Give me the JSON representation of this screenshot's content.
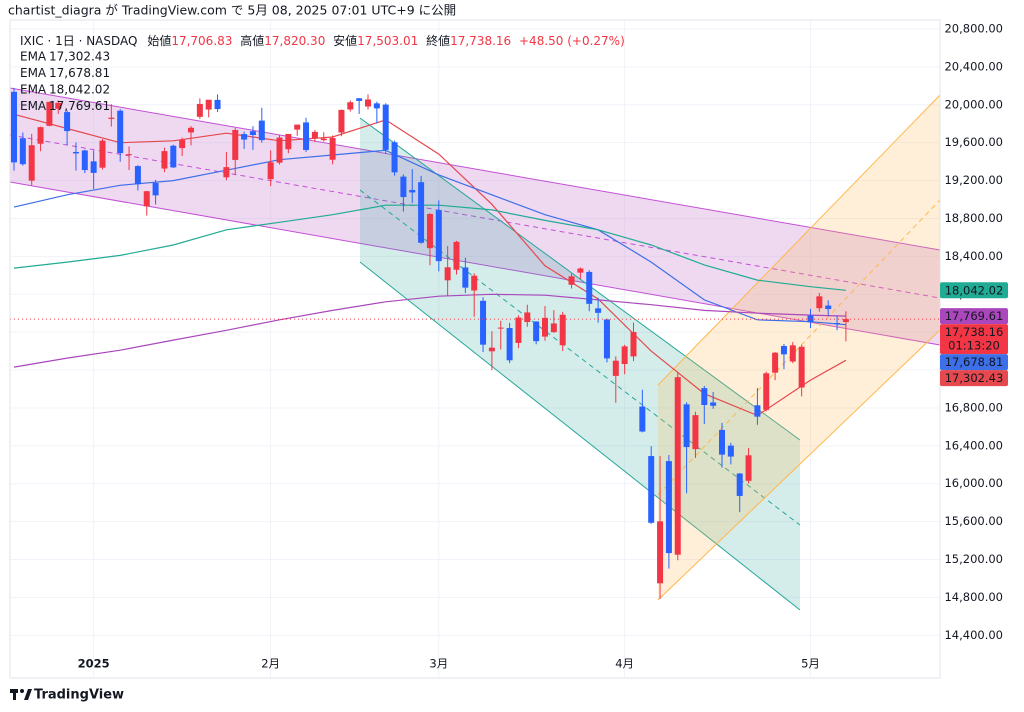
{
  "chart_data": {
    "type": "candlestick",
    "published": "chartist_diagra が TradingView.com で 5月 08, 2025 07:01 UTC+9 に公開",
    "symbol": "IXIC · 1日 · NASDAQ",
    "ohlc_legend": [
      {
        "name": "始値",
        "label": "17,706.83"
      },
      {
        "name": "高値",
        "label": "17,820.30"
      },
      {
        "name": "安値",
        "label": "17,503.01"
      },
      {
        "name": "終値",
        "label": "17,738.16"
      }
    ],
    "change": "+48.50 (+0.27%)",
    "countdown": "01:13:20",
    "brand": "TradingView",
    "categories": [
      null,
      null,
      null,
      null,
      null,
      null,
      null,
      null,
      null,
      "2025",
      null,
      null,
      null,
      null,
      null,
      null,
      null,
      null,
      null,
      null,
      null,
      null,
      null,
      null,
      null,
      null,
      null,
      null,
      null,
      "2月",
      null,
      null,
      null,
      null,
      null,
      null,
      null,
      null,
      null,
      null,
      null,
      null,
      null,
      null,
      null,
      null,
      null,
      null,
      "3月",
      null,
      null,
      null,
      null,
      null,
      null,
      null,
      null,
      null,
      null,
      null,
      null,
      null,
      null,
      null,
      null,
      null,
      null,
      null,
      null,
      "4月",
      null,
      null,
      null,
      null,
      null,
      null,
      null,
      null,
      null,
      null,
      null,
      null,
      null,
      null,
      null,
      null,
      null,
      null,
      null,
      null,
      "5月",
      null,
      null,
      null,
      null
    ],
    "open": [
      20137,
      19647,
      19199,
      19589,
      19778,
      19958,
      19923,
      19502,
      19518,
      19403,
      19336,
      19851,
      19938,
      19469,
      19353,
      18928,
      19174,
      19327,
      19568,
      19543,
      19708,
      19873,
      19950,
      20052,
      19235,
      19418,
      19691,
      19721,
      19833,
      19215,
      19389,
      19531,
      19738,
      19814,
      19647,
      19626,
      19420,
      19707,
      19951,
      20069,
      19982,
      20015,
      20002,
      19604,
      19242,
      19101,
      19183,
      18487,
      18888,
      18147,
      18259,
      18283,
      18040,
      17931,
      17398,
      17642,
      17644,
      17486,
      17707,
      17713,
      17553,
      17600,
      17462,
      18100,
      18228,
      18236,
      17851,
      17734,
      17138,
      17264,
      17344,
      16815,
      16292,
      14949,
      16239,
      15251,
      16838,
      16365,
      17009,
      16858,
      16568,
      16402,
      16108,
      16031,
      16828,
      16780,
      17172,
      17454,
      17290,
      17016,
      17775,
      17853,
      17881,
      17696,
      17706.83
    ],
    "high": [
      20178,
      19708,
      19693,
      19770,
      20031,
      20044,
      19940,
      19603,
      19526,
      19517,
      19638,
      20007,
      19954,
      19560,
      19363,
      19091,
      19208,
      19548,
      19579,
      19654,
      19776,
      20068,
      20053,
      20110,
      19502,
      19755,
      19718,
      19774,
      19969,
      19519,
      19681,
      19692,
      19791,
      19863,
      19735,
      19710,
      19676,
      19950,
      20045,
      20070,
      20110,
      20033,
      20016,
      19622,
      19266,
      19321,
      19249,
      18858,
      18990,
      18509,
      18564,
      18386,
      18221,
      17969,
      17609,
      17720,
      17698,
      17778,
      17890,
      17714,
      17876,
      17833,
      17815,
      18218,
      18283,
      18254,
      17963,
      17741,
      17344,
      17467,
      17701,
      16992,
      16396,
      16292,
      16303,
      17176,
      16860,
      16760,
      17032,
      16969,
      16643,
      16432,
      16113,
      16377,
      17010,
      17183,
      17389,
      17475,
      17497,
      17466,
      17846,
      18014,
      17936,
      17776,
      17820.3
    ],
    "low": [
      19305,
      19357,
      19149,
      19510,
      19773,
      19903,
      19573,
      19306,
      19279,
      19111,
      19317,
      19770,
      19399,
      19311,
      19096,
      18831,
      18947,
      19289,
      19333,
      19459,
      19571,
      19850,
      19868,
      19923,
      19204,
      19260,
      19534,
      19524,
      19600,
      19141,
      19370,
      19488,
      19672,
      19501,
      19607,
      19612,
      19371,
      19668,
      19928,
      19904,
      19950,
      19803,
      19484,
      19252,
      18873,
      18963,
      18534,
      18306,
      18242,
      17979,
      18208,
      18013,
      17762,
      17391,
      17199,
      17417,
      17273,
      17430,
      17657,
      17472,
      17508,
      17593,
      17401,
      18061,
      18161,
      17821,
      17700,
      17282,
      16854,
      17156,
      17294,
      16543,
      15576,
      14784,
      15104,
      15192,
      15900,
      16272,
      16632,
      16791,
      16170,
      16204,
      15700,
      16003,
      16622,
      16764,
      17093,
      17209,
      17273,
      16922,
      17644,
      17815,
      17771,
      17620,
      17503.01
    ],
    "close": [
      19392,
      19373,
      19573,
      19764,
      20031,
      20020,
      19722,
      19487,
      19311,
      19281,
      19622,
      19864,
      19490,
      19479,
      19162,
      19088,
      19044,
      19511,
      19339,
      19630,
      19757,
      20009,
      20053,
      19955,
      19342,
      19734,
      19633,
      19681,
      19627,
      19392,
      19654,
      19692,
      19791,
      19523,
      19714,
      19643,
      19650,
      19946,
      20027,
      20041,
      20056,
      19962,
      19524,
      19287,
      19026,
      19075,
      18544,
      18847,
      18350,
      18285,
      18553,
      18070,
      18196,
      17468,
      17436,
      17648,
      17303,
      17754,
      17808,
      17505,
      17751,
      17692,
      17784,
      18189,
      18272,
      17899,
      17804,
      17323,
      17299,
      17450,
      17601,
      16551,
      15588,
      15603,
      15268,
      17125,
      16387,
      16724,
      16831,
      16823,
      16307,
      16287,
      15871,
      16300,
      16708,
      17166,
      17383,
      17366,
      17461,
      17446,
      17710,
      17978,
      17844,
      17690,
      17738.16
    ],
    "up_color": "#f23645",
    "down_color": "#2962ff",
    "lines": [
      {
        "name": "EMA",
        "color": "#e5484d",
        "x": [
          0,
          6,
          12,
          18,
          24,
          30,
          36,
          42,
          48,
          54,
          60,
          66,
          72,
          78,
          84,
          90,
          94
        ],
        "values": [
          19900,
          19750,
          19600,
          19620,
          19700,
          19620,
          19660,
          19840,
          19480,
          18950,
          18300,
          17950,
          17400,
          16950,
          16720,
          17094,
          17302.43
        ],
        "value_labels": [
          null,
          null,
          null,
          null,
          null,
          null,
          null,
          null,
          null,
          null,
          null,
          null,
          null,
          null,
          null,
          null,
          "17,302.43"
        ]
      },
      {
        "name": "EMA",
        "color": "#3d6fe8",
        "x": [
          0,
          6,
          12,
          18,
          24,
          30,
          36,
          42,
          48,
          54,
          60,
          66,
          72,
          78,
          84,
          90,
          94
        ],
        "values": [
          18920,
          19050,
          19150,
          19200,
          19310,
          19420,
          19470,
          19520,
          19260,
          19050,
          18840,
          18680,
          18340,
          17940,
          17730,
          17710,
          17678.81
        ],
        "value_labels": [
          null,
          null,
          null,
          null,
          null,
          null,
          null,
          null,
          null,
          null,
          null,
          null,
          null,
          null,
          null,
          null,
          "17,678.81"
        ]
      },
      {
        "name": "EMA",
        "color": "#22ab94",
        "x": [
          0,
          6,
          12,
          18,
          24,
          30,
          36,
          42,
          48,
          54,
          60,
          66,
          72,
          78,
          84,
          90,
          94
        ],
        "values": [
          18276,
          18340,
          18410,
          18520,
          18680,
          18760,
          18840,
          18940,
          18940,
          18890,
          18780,
          18680,
          18520,
          18310,
          18150,
          18080,
          18042.02
        ],
        "value_labels": [
          null,
          null,
          null,
          null,
          null,
          null,
          null,
          null,
          null,
          null,
          null,
          null,
          null,
          null,
          null,
          null,
          "18,042.02"
        ]
      },
      {
        "name": "EMA",
        "color": "#ab47bc",
        "x": [
          0,
          6,
          12,
          18,
          24,
          30,
          36,
          42,
          48,
          54,
          60,
          66,
          72,
          78,
          84,
          90,
          94
        ],
        "values": [
          17231,
          17326,
          17410,
          17516,
          17620,
          17730,
          17830,
          17920,
          17980,
          18000,
          17990,
          17940,
          17890,
          17830,
          17800,
          17780,
          17769.61
        ],
        "value_labels": [
          null,
          null,
          null,
          null,
          null,
          null,
          null,
          null,
          null,
          null,
          null,
          null,
          null,
          null,
          null,
          null,
          "17,769.61"
        ]
      }
    ],
    "ylim": [
      14245,
      20895
    ],
    "yticks": [
      {
        "value": 14400,
        "label": "14,400.00"
      },
      {
        "value": 14800,
        "label": "14,800.00"
      },
      {
        "value": 15200,
        "label": "15,200.00"
      },
      {
        "value": 15600,
        "label": "15,600.00"
      },
      {
        "value": 16000,
        "label": "16,000.00"
      },
      {
        "value": 16400,
        "label": "16,400.00"
      },
      {
        "value": 16800,
        "label": "16,800.00"
      },
      {
        "value": 17200,
        "label": "17,200.00"
      },
      {
        "value": 17600,
        "label": "17,600.00"
      },
      {
        "value": 18000,
        "label": "18,000.00"
      },
      {
        "value": 18400,
        "label": "18,400.00"
      },
      {
        "value": 18800,
        "label": "18,800.00"
      },
      {
        "value": 19200,
        "label": "19,200.00"
      },
      {
        "value": 19600,
        "label": "19,600.00"
      },
      {
        "value": 20000,
        "label": "20,000.00"
      },
      {
        "value": 20400,
        "label": "20,400.00"
      },
      {
        "value": 20800,
        "label": "20,800.00"
      }
    ],
    "grid": true
  }
}
